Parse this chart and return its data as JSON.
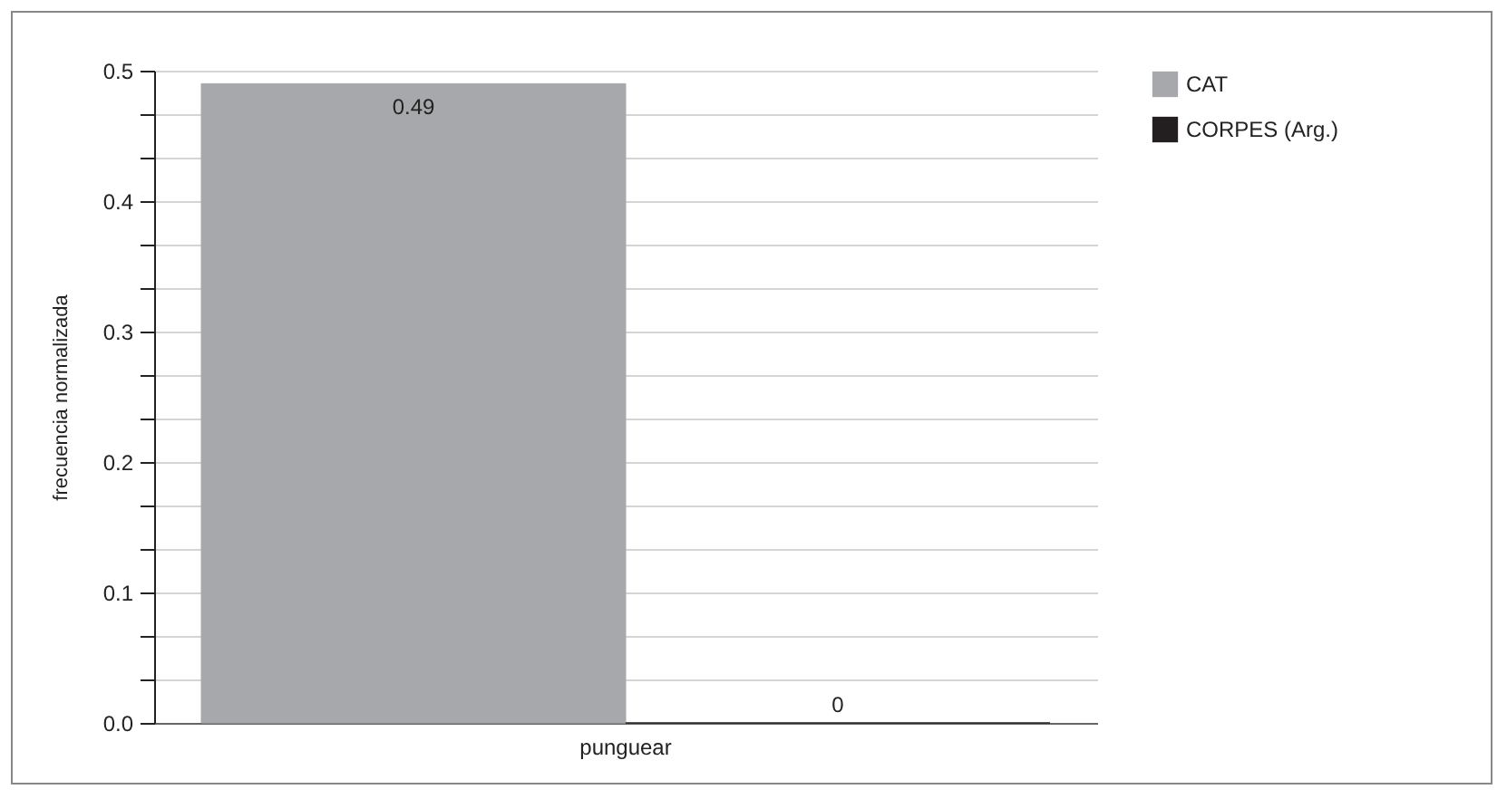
{
  "chart_data": {
    "type": "bar",
    "ylabel": "frecuencia normalizada",
    "categories": [
      "punguear"
    ],
    "series": [
      {
        "name": "CAT",
        "color": "#a7a8ab",
        "values": [
          0.49
        ]
      },
      {
        "name": "CORPES (Arg.)",
        "color": "#231f20",
        "values": [
          0
        ]
      }
    ],
    "ylim": [
      0,
      0.5
    ],
    "yticks": [
      {
        "value": 0,
        "label": "0.0"
      },
      {
        "value": 0.033,
        "label": null
      },
      {
        "value": 0.067,
        "label": null
      },
      0.1,
      {
        "value": 0.133,
        "label": null
      },
      {
        "value": 0.167,
        "label": null
      },
      0.2,
      {
        "value": 0.233,
        "label": null
      },
      {
        "value": 0.267,
        "label": null
      },
      0.3,
      {
        "value": 0.333,
        "label": null
      },
      {
        "value": 0.367,
        "label": null
      },
      0.4,
      {
        "value": 0.433,
        "label": null
      },
      {
        "value": 0.467,
        "label": null
      },
      0.5
    ],
    "grid": true,
    "legend": "top right",
    "data_labels": true
  }
}
